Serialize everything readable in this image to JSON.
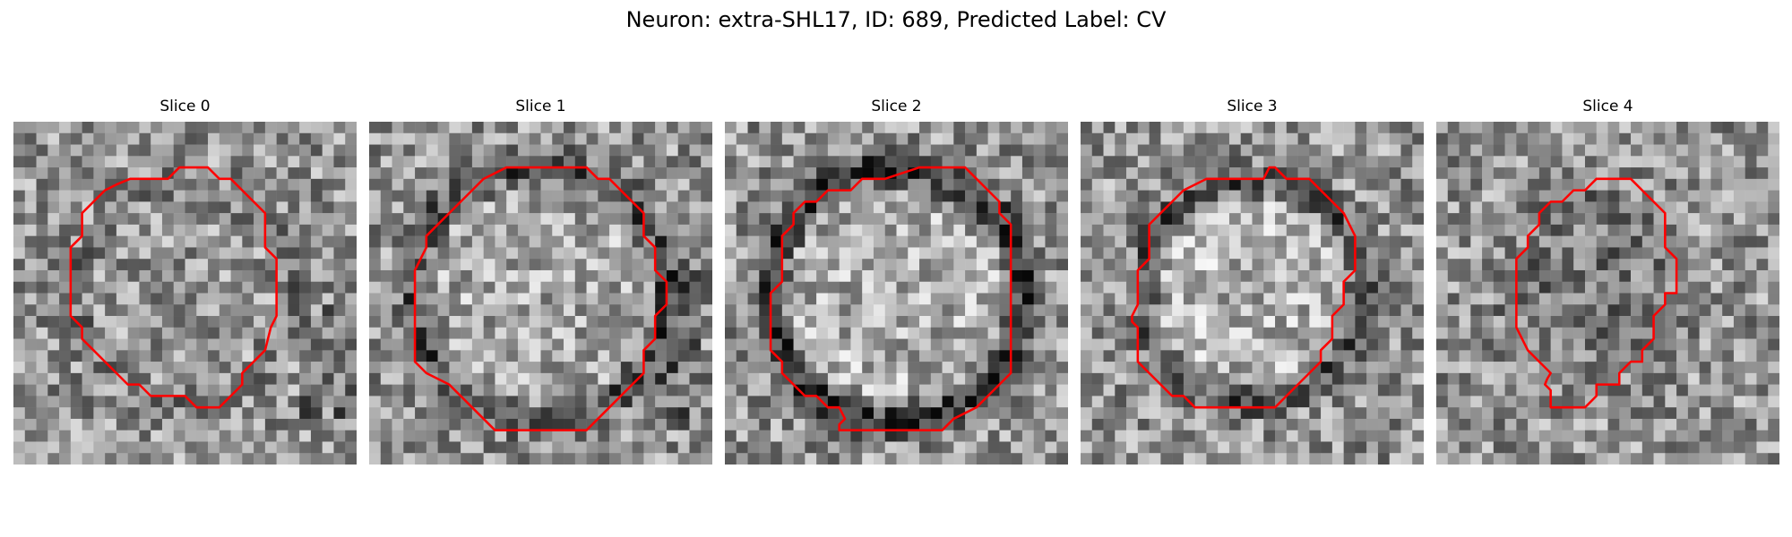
{
  "figure": {
    "title": "Neuron: extra-SHL17, ID: 689, Predicted Label: CV"
  },
  "colors": {
    "contour": "#ff0000",
    "background": "#ffffff"
  },
  "panels": [
    {
      "title": "Slice 0"
    },
    {
      "title": "Slice 1"
    },
    {
      "title": "Slice 2"
    },
    {
      "title": "Slice 3"
    },
    {
      "title": "Slice 4"
    }
  ]
}
